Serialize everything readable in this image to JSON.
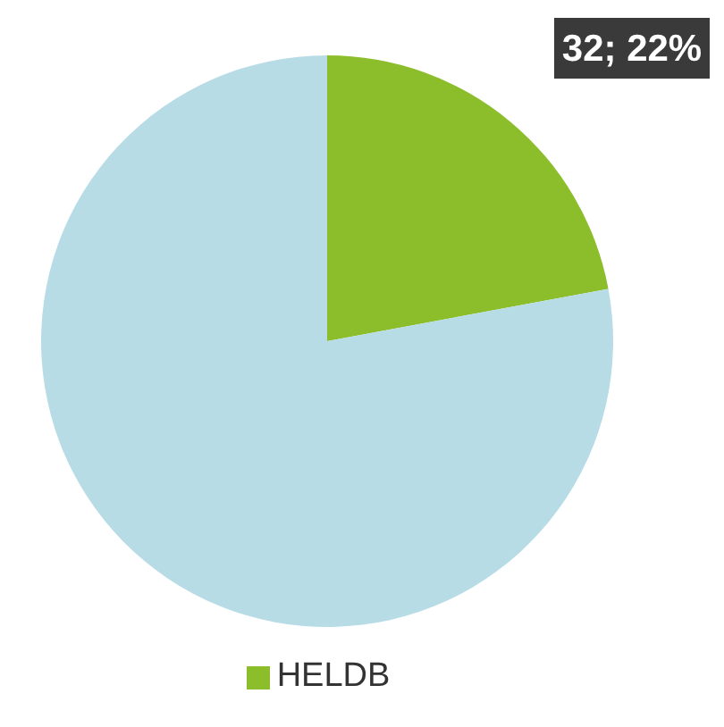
{
  "chart_data": {
    "type": "pie",
    "categories": [
      "HELDB",
      null
    ],
    "values": [
      32,
      113
    ],
    "colors": [
      "#8cbd2a",
      "#b7dce6"
    ],
    "value_labels": [
      "32; 22%",
      null
    ],
    "legend": "bottom"
  }
}
